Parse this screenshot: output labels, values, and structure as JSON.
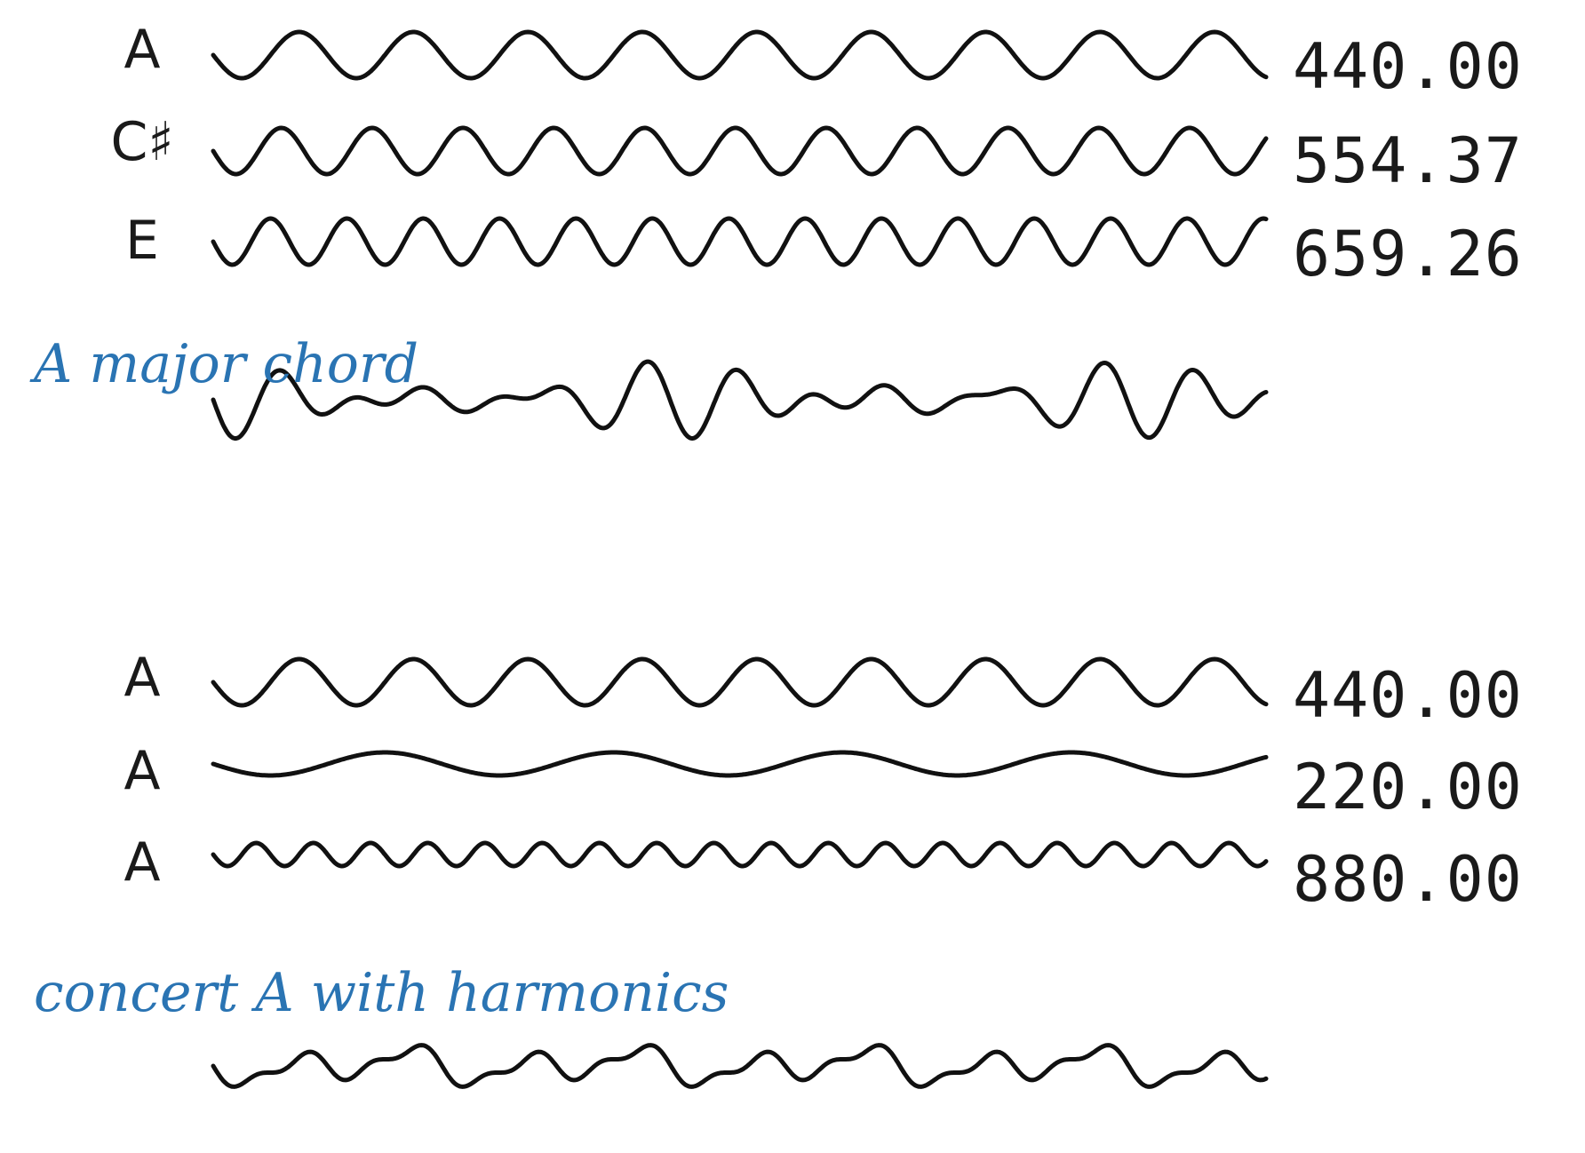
{
  "groups": [
    {
      "caption": "A major chord",
      "notes": [
        {
          "name": "A",
          "frequency": "440.00",
          "hz": 440,
          "amplitude": 1.0
        },
        {
          "name": "C♯",
          "frequency": "554.37",
          "hz": 554.37,
          "amplitude": 1.0
        },
        {
          "name": "E",
          "frequency": "659.26",
          "hz": 659.26,
          "amplitude": 1.0
        }
      ],
      "combined": "sum"
    },
    {
      "caption": "concert A with harmonics",
      "notes": [
        {
          "name": "A",
          "frequency": "440.00",
          "hz": 440,
          "amplitude": 1.0
        },
        {
          "name": "A",
          "frequency": "220.00",
          "hz": 220,
          "amplitude": 0.5
        },
        {
          "name": "A",
          "frequency": "880.00",
          "hz": 880,
          "amplitude": 0.5
        }
      ],
      "combined": "sum"
    }
  ],
  "colors": {
    "caption": "#2a74b3",
    "wave": "#111111"
  }
}
